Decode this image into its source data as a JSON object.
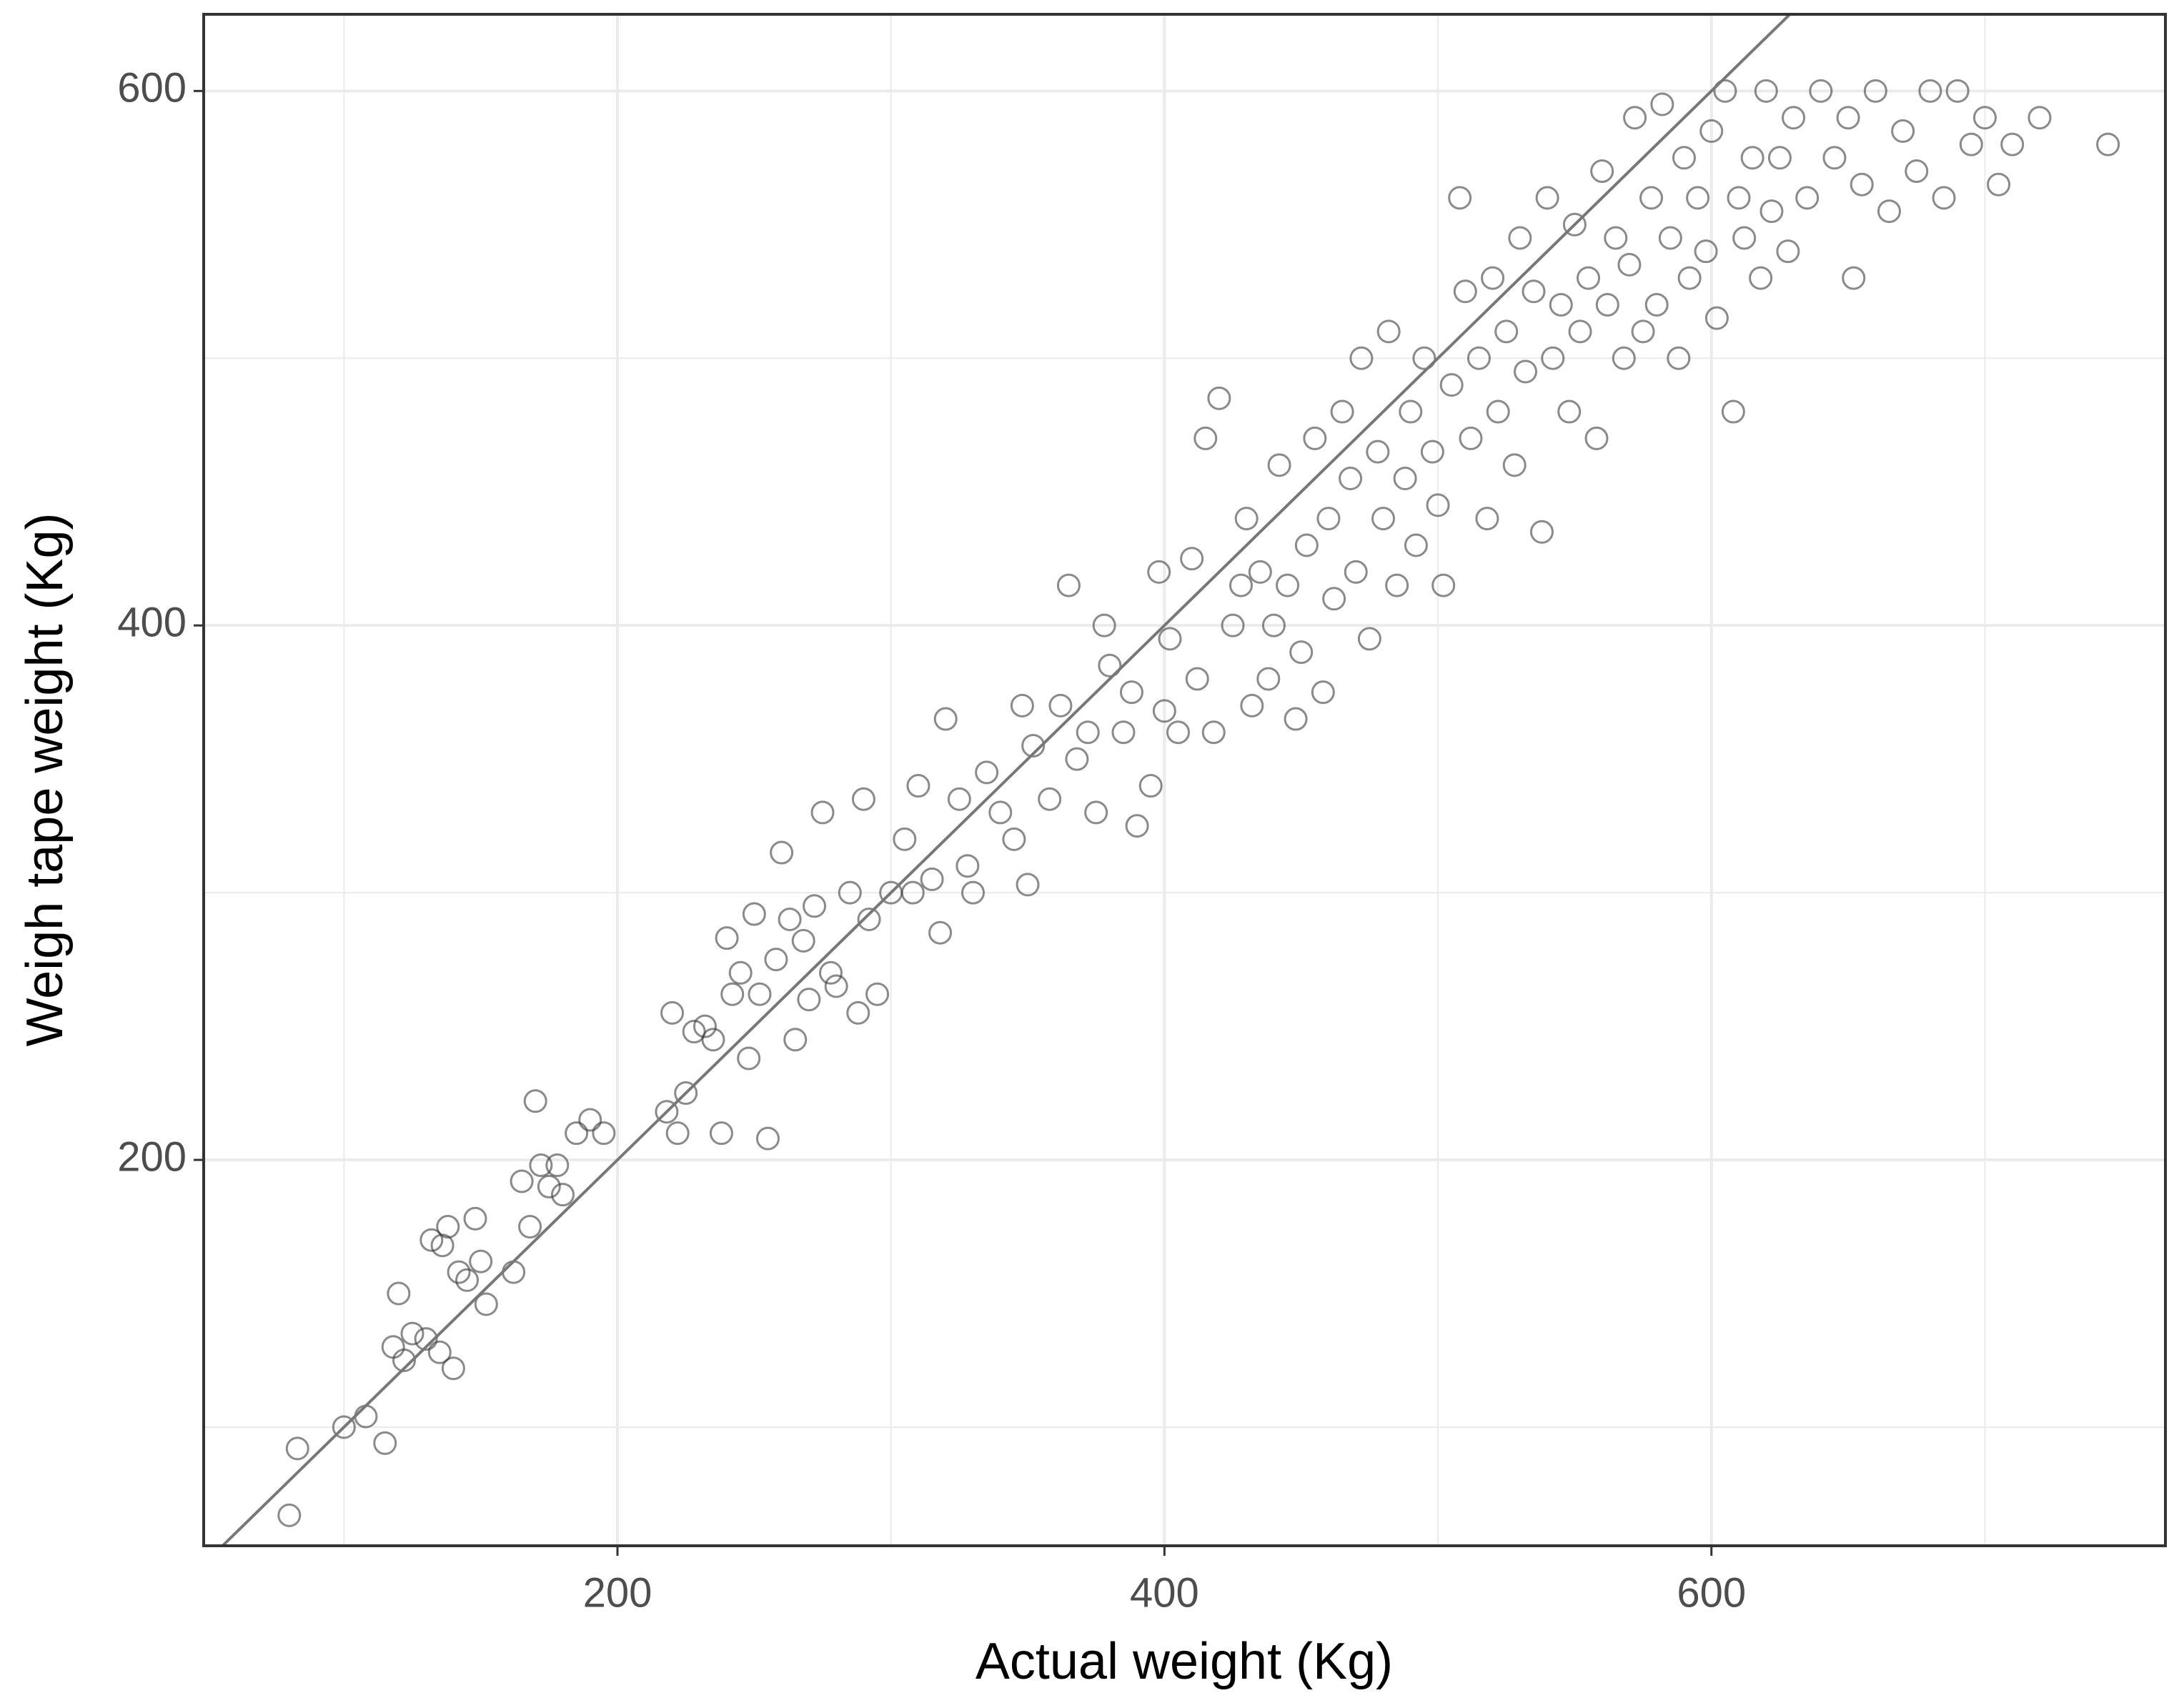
{
  "chart_data": {
    "type": "scatter",
    "xlabel": "Actual weight (Kg)",
    "ylabel": "Weigh tape weight (Kg)",
    "xlim": [
      48.7,
      766
    ],
    "ylim": [
      55.6,
      628.7
    ],
    "xticks": [
      200,
      400,
      600
    ],
    "yticks": [
      200,
      400,
      600
    ],
    "minor_xticks": [
      100,
      300,
      500,
      700
    ],
    "minor_yticks": [
      100,
      300,
      500
    ],
    "grid": true,
    "color": "#3c3c3c",
    "reference_line": {
      "slope": 1,
      "intercept": 0,
      "color": "#777777"
    },
    "x": [
      80,
      83,
      100,
      108,
      115,
      118,
      120,
      122,
      125,
      130,
      132,
      135,
      136,
      138,
      140,
      142,
      145,
      148,
      150,
      152,
      162,
      165,
      168,
      170,
      172,
      175,
      178,
      180,
      185,
      190,
      195,
      218,
      220,
      222,
      225,
      228,
      232,
      235,
      238,
      240,
      242,
      245,
      248,
      250,
      252,
      255,
      258,
      260,
      263,
      265,
      268,
      270,
      272,
      275,
      278,
      280,
      285,
      288,
      290,
      292,
      295,
      300,
      305,
      308,
      310,
      315,
      318,
      320,
      325,
      328,
      330,
      335,
      340,
      345,
      348,
      350,
      352,
      358,
      362,
      365,
      368,
      372,
      375,
      378,
      380,
      385,
      388,
      390,
      395,
      398,
      400,
      402,
      405,
      410,
      412,
      415,
      418,
      420,
      425,
      428,
      430,
      432,
      435,
      438,
      440,
      442,
      445,
      448,
      450,
      452,
      455,
      458,
      460,
      462,
      465,
      468,
      470,
      472,
      475,
      478,
      480,
      482,
      485,
      488,
      490,
      492,
      495,
      498,
      500,
      502,
      505,
      508,
      510,
      512,
      515,
      518,
      520,
      522,
      525,
      528,
      530,
      532,
      535,
      538,
      540,
      542,
      545,
      548,
      550,
      552,
      555,
      558,
      560,
      562,
      565,
      568,
      570,
      572,
      575,
      578,
      580,
      582,
      585,
      588,
      590,
      592,
      595,
      598,
      600,
      602,
      605,
      608,
      610,
      612,
      615,
      618,
      620,
      622,
      625,
      628,
      630,
      635,
      640,
      645,
      650,
      652,
      655,
      660,
      665,
      670,
      675,
      680,
      685,
      690,
      695,
      700,
      705,
      710,
      720,
      745
    ],
    "values": [
      67,
      92,
      100,
      104,
      94,
      130,
      150,
      125,
      135,
      133,
      170,
      128,
      168,
      175,
      122,
      158,
      155,
      178,
      162,
      146,
      158,
      192,
      175,
      222,
      198,
      190,
      198,
      187,
      210,
      215,
      210,
      218,
      255,
      210,
      225,
      248,
      250,
      245,
      210,
      283,
      262,
      270,
      238,
      292,
      262,
      208,
      275,
      315,
      290,
      245,
      282,
      260,
      295,
      330,
      270,
      265,
      300,
      255,
      335,
      290,
      262,
      300,
      320,
      300,
      340,
      305,
      285,
      365,
      335,
      310,
      300,
      345,
      330,
      320,
      370,
      303,
      355,
      335,
      370,
      415,
      350,
      360,
      330,
      400,
      385,
      360,
      375,
      325,
      340,
      420,
      368,
      395,
      360,
      425,
      380,
      470,
      360,
      485,
      400,
      415,
      440,
      370,
      420,
      380,
      400,
      460,
      415,
      365,
      390,
      430,
      470,
      375,
      440,
      410,
      480,
      455,
      420,
      500,
      395,
      465,
      440,
      510,
      415,
      455,
      480,
      430,
      500,
      465,
      445,
      415,
      490,
      560,
      525,
      470,
      500,
      440,
      530,
      480,
      510,
      460,
      545,
      495,
      525,
      435,
      560,
      500,
      520,
      480,
      550,
      510,
      530,
      470,
      570,
      520,
      545,
      500,
      535,
      590,
      510,
      560,
      520,
      595,
      545,
      500,
      575,
      530,
      560,
      540,
      585,
      515,
      600,
      480,
      560,
      545,
      575,
      530,
      600,
      555,
      575,
      540,
      590,
      560,
      600,
      575,
      590,
      530,
      565,
      600,
      555,
      585,
      570,
      600,
      560,
      600,
      580,
      590,
      565,
      580,
      590,
      580
    ]
  }
}
